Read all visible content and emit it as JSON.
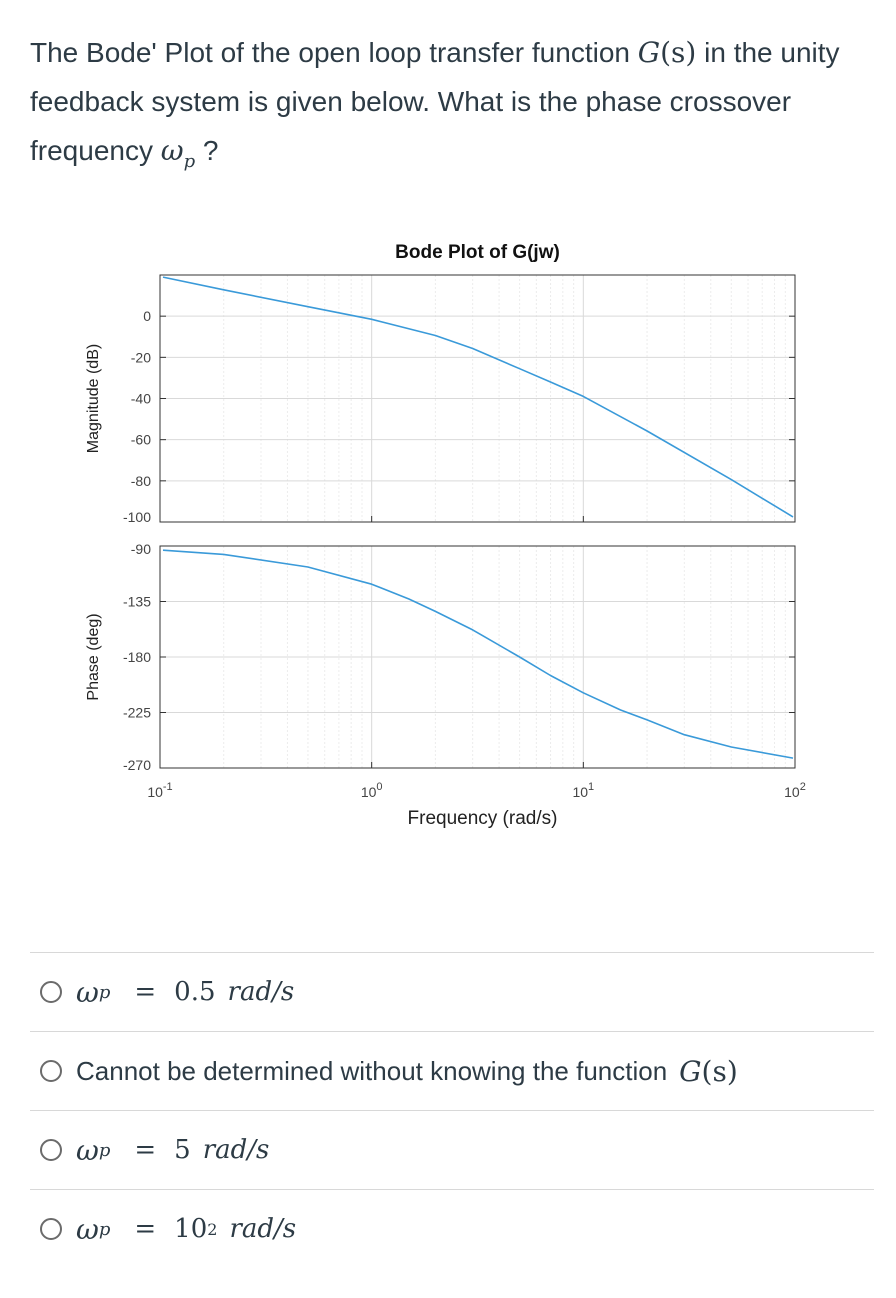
{
  "question": {
    "text_1": "The Bode' Plot of the open loop transfer function ",
    "g_symbol": "G",
    "g_arg": "(s)",
    "text_2": " in the unity feedback system is given below. What is the phase crossover frequency ",
    "omega": "ω",
    "omega_sub": "p",
    "text_3": " ?"
  },
  "chart_data": [
    {
      "type": "line",
      "title": "Bode Plot of G(jw)",
      "xlabel": "",
      "ylabel": "Magnitude (dB)",
      "xscale": "log",
      "xlim": [
        0.1,
        100
      ],
      "ylim": [
        -100,
        20
      ],
      "yticks": [
        "0",
        "-20",
        "-40",
        "-60",
        "-80",
        "-100"
      ],
      "grid": true,
      "color": "#3a9ad9",
      "series": [
        {
          "x": [
            0.1,
            0.2,
            0.5,
            1,
            2,
            3,
            5,
            7,
            10,
            20,
            50,
            100
          ],
          "values": [
            19.0,
            12.8,
            4.6,
            -1.5,
            -9.4,
            -15.7,
            -25.5,
            -32.0,
            -39.0,
            -55.8,
            -79.4,
            -97.5
          ]
        }
      ]
    },
    {
      "type": "line",
      "title": "",
      "xlabel": "Frequency (rad/s)",
      "ylabel": "Phase (deg)",
      "xscale": "log",
      "xlim": [
        0.1,
        100
      ],
      "ylim": [
        -270,
        -90
      ],
      "yticks": [
        "-90",
        "-135",
        "-180",
        "-225",
        "-270"
      ],
      "xticks": [
        {
          "value": 0.1,
          "base": "10",
          "exp": "-1"
        },
        {
          "value": 1,
          "base": "10",
          "exp": "0"
        },
        {
          "value": 10,
          "base": "10",
          "exp": "1"
        },
        {
          "value": 100,
          "base": "10",
          "exp": "2"
        }
      ],
      "grid": true,
      "color": "#3a9ad9",
      "series": [
        {
          "x": [
            0.1,
            0.2,
            0.5,
            1,
            1.5,
            2,
            3,
            5,
            7,
            10,
            15,
            20,
            30,
            50,
            100
          ],
          "values": [
            -93.4,
            -96.8,
            -107,
            -121,
            -133,
            -143,
            -158,
            -180,
            -195,
            -209,
            -223,
            -231,
            -243,
            -253,
            -262
          ]
        }
      ]
    }
  ],
  "options": [
    {
      "kind": "omega",
      "omega": "ω",
      "sub": "p",
      "eq": "=",
      "value": "0.5",
      "exp": "",
      "unit": "rad/s"
    },
    {
      "kind": "text",
      "text": "Cannot be determined without knowing the function ",
      "g_symbol": "G",
      "g_arg": "(s)"
    },
    {
      "kind": "omega",
      "omega": "ω",
      "sub": "p",
      "eq": "=",
      "value": "5",
      "exp": "",
      "unit": "rad/s"
    },
    {
      "kind": "omega",
      "omega": "ω",
      "sub": "p",
      "eq": "=",
      "value": "10",
      "exp": "2",
      "unit": "rad/s"
    }
  ]
}
